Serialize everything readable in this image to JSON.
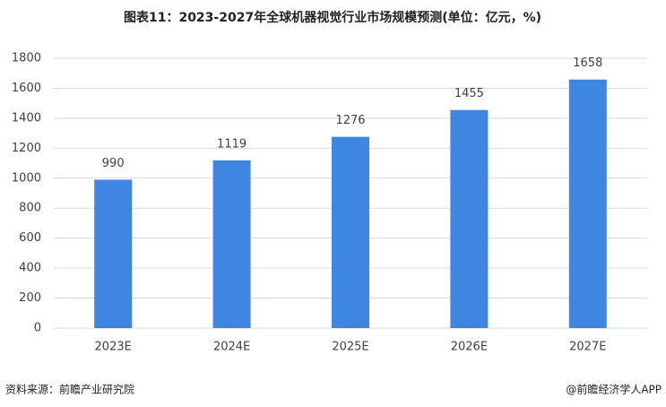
{
  "chart_data": {
    "type": "bar",
    "title": "图表11：2023-2027年全球机器视觉行业市场规模预测(单位：亿元，%)",
    "categories": [
      "2023E",
      "2024E",
      "2025E",
      "2026E",
      "2027E"
    ],
    "values": [
      990,
      1119,
      1276,
      1455,
      1658
    ],
    "color": "#3f86e2",
    "ylim": [
      0,
      1800
    ],
    "yticks": [
      0,
      200,
      400,
      600,
      800,
      1000,
      1200,
      1400,
      1600,
      1800
    ],
    "grid": true,
    "source": "资料来源：前瞻产业研究院",
    "credit": "@前瞻经济学人APP"
  }
}
